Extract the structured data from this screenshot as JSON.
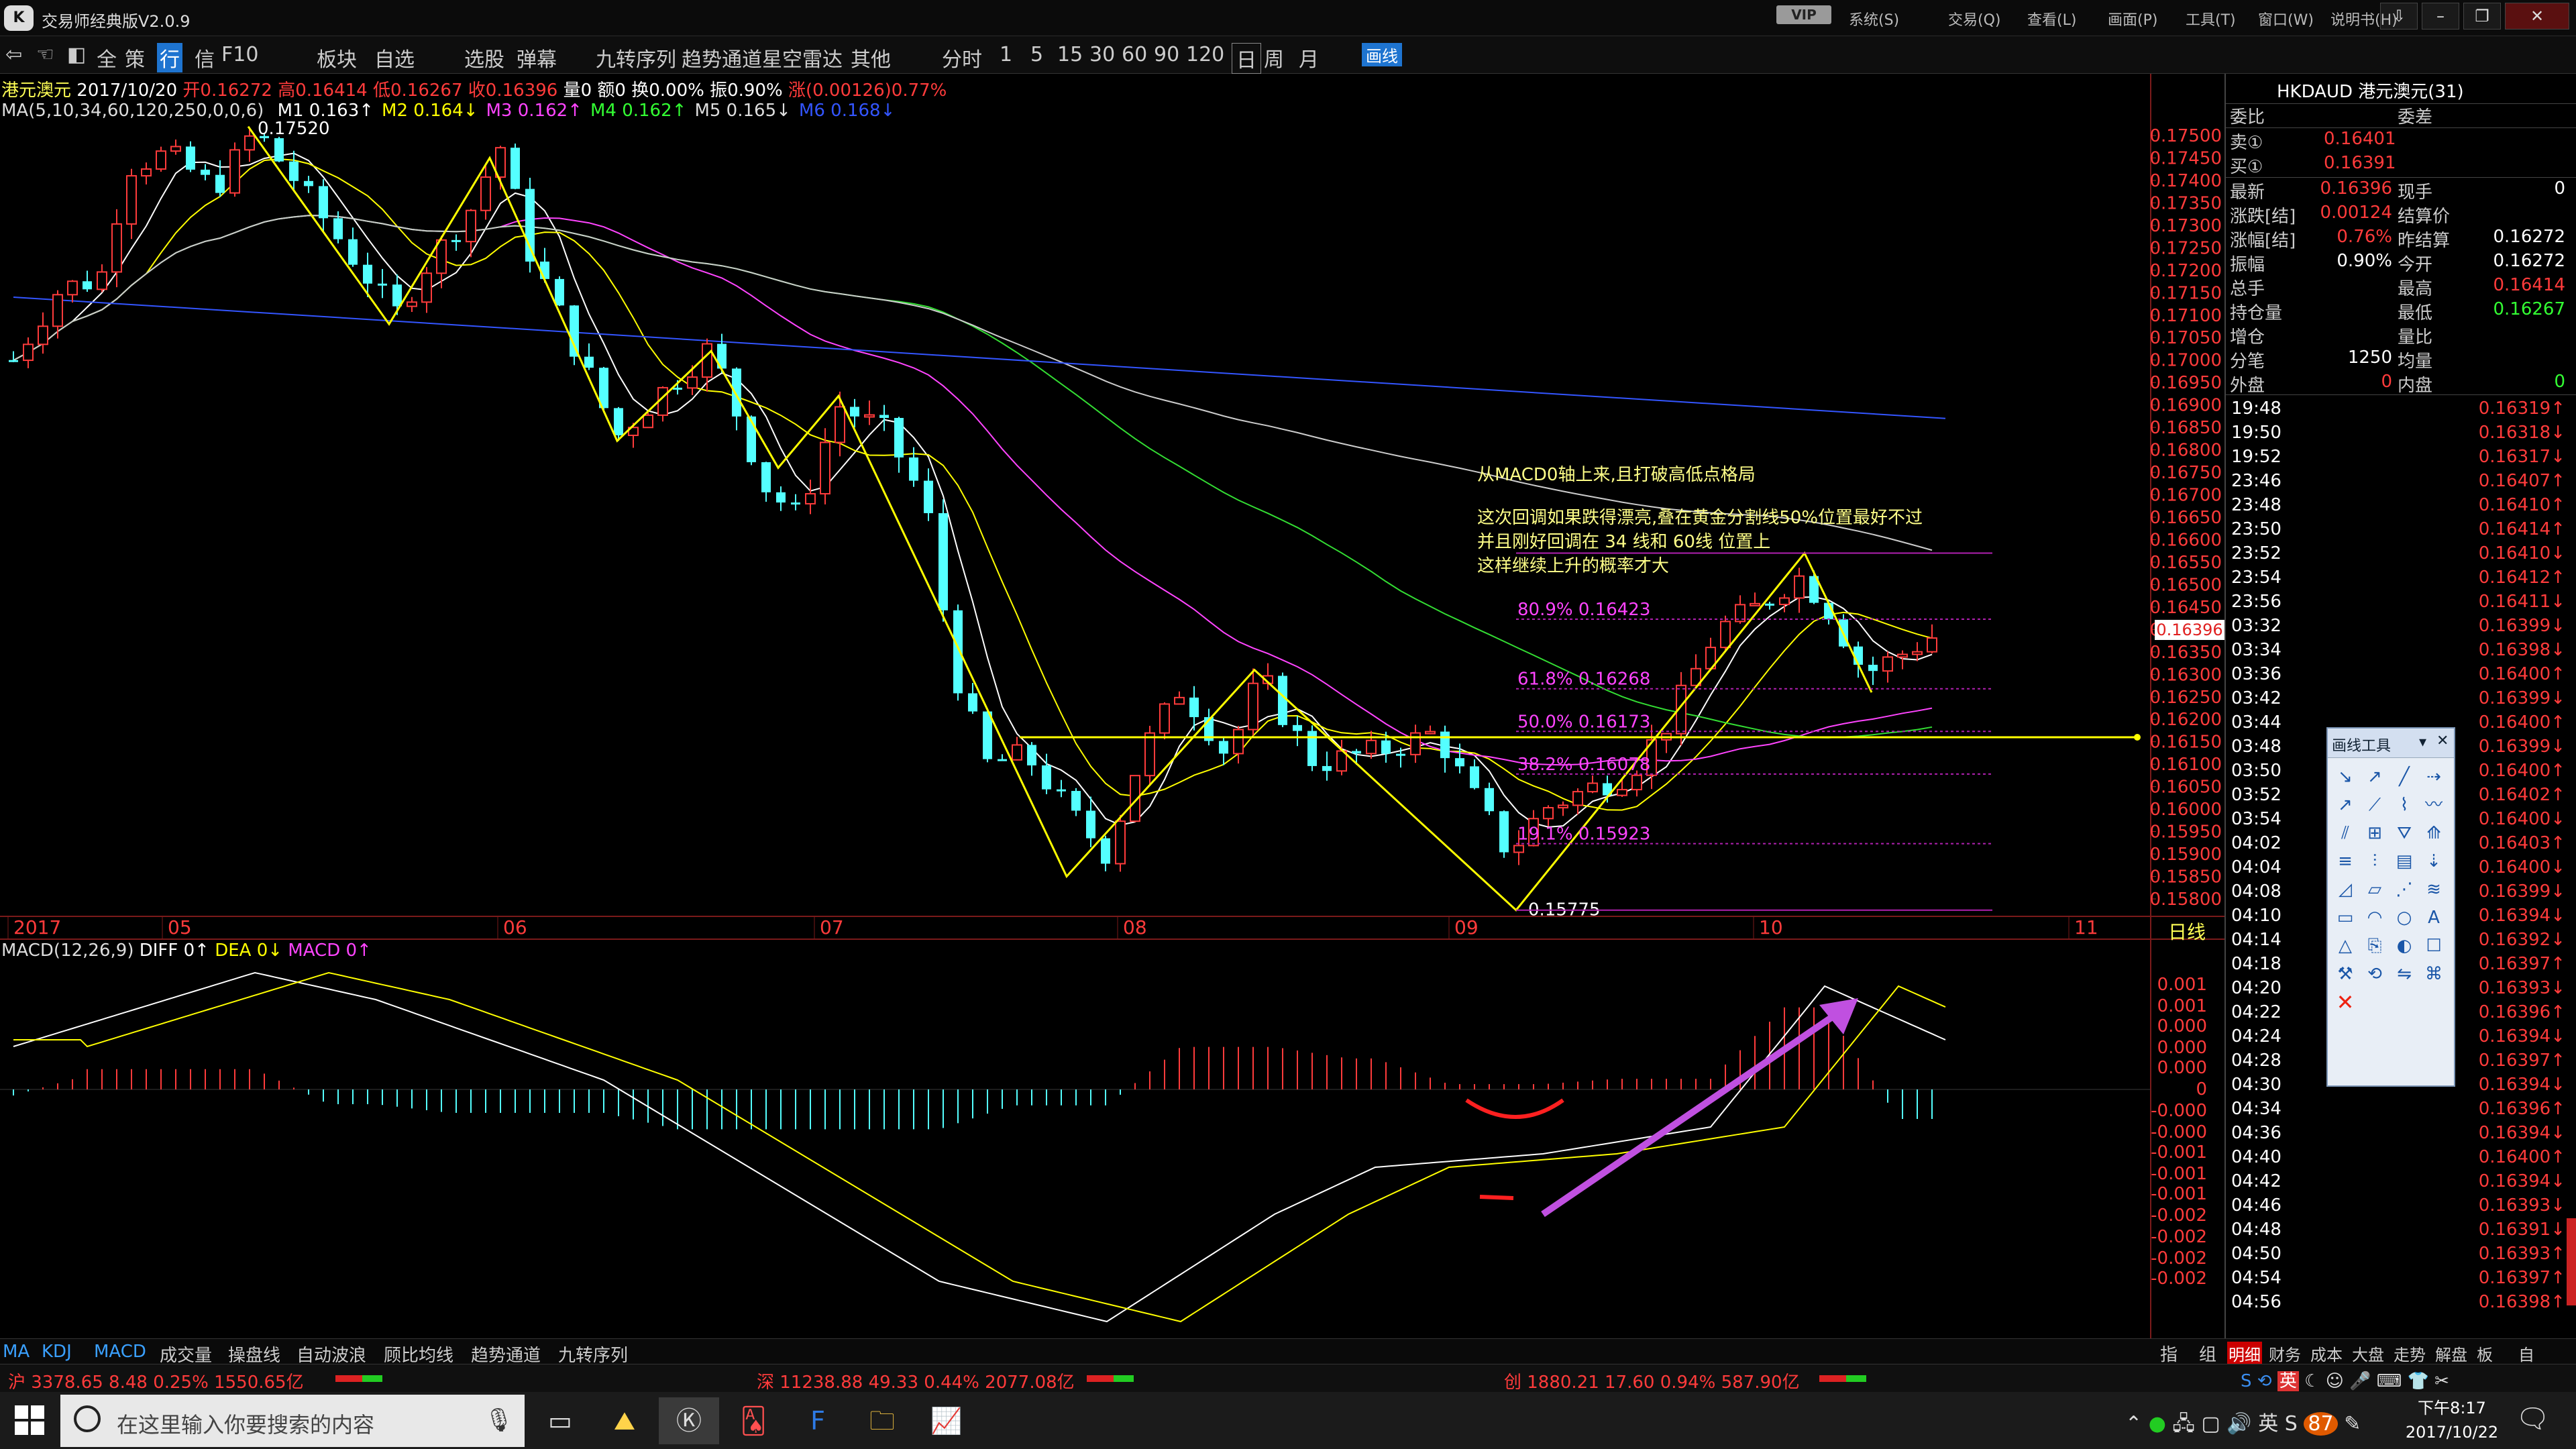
{
  "window": {
    "title": "交易师经典版V2.0.9",
    "vip": "VIP",
    "menus": [
      "系统(S)",
      "交易(Q)",
      "查看(L)",
      "画面(P)",
      "工具(T)",
      "窗口(W)",
      "说明书(H)"
    ],
    "controls": [
      "⇩",
      "–",
      "❐",
      "✕"
    ]
  },
  "toolbar": {
    "items": [
      "全",
      "策",
      "行",
      "信",
      "F10",
      "板块",
      "自选",
      "选股",
      "弹幕",
      "九转序列",
      "趋势通道",
      "星空雷达",
      "其他",
      "分时",
      "1",
      "5",
      "15",
      "30",
      "60",
      "90",
      "120",
      "日",
      "周",
      "月",
      "画线"
    ],
    "active": "行",
    "selected_period": "日"
  },
  "quote_line": {
    "name": "港元澳元",
    "date": "2017/10/20",
    "open": "开0.16272",
    "high": "高0.16414",
    "low": "低0.16267",
    "close": "收0.16396",
    "volume": "量0",
    "amount": "额0",
    "turnover": "换0.00%",
    "amplitude": "振0.90%",
    "change": "涨(0.00126)0.77%"
  },
  "ma_line": {
    "params": "MA(5,10,34,60,120,250,0,0,6)",
    "items": [
      {
        "label": "M1 0.163↑",
        "color": "#ffffff"
      },
      {
        "label": "M2 0.164↓",
        "color": "#ffff00"
      },
      {
        "label": "M3 0.162↑",
        "color": "#ff44ff"
      },
      {
        "label": "M4 0.162↑",
        "color": "#33ff33"
      },
      {
        "label": "M5 0.165↓",
        "color": "#dddddd"
      },
      {
        "label": "M6 0.168↓",
        "color": "#3355ff"
      }
    ]
  },
  "main_chart": {
    "price_axis": [
      "0.17500",
      "0.17450",
      "0.17400",
      "0.17350",
      "0.17300",
      "0.17250",
      "0.17200",
      "0.17150",
      "0.17100",
      "0.17050",
      "0.17000",
      "0.16950",
      "0.16900",
      "0.16850",
      "0.16800",
      "0.16750",
      "0.16700",
      "0.16650",
      "0.16600",
      "0.16550",
      "0.16500",
      "0.16450",
      "0.16400",
      "0.16350",
      "0.16300",
      "0.16250",
      "0.16200",
      "0.16150",
      "0.16100",
      "0.16050",
      "0.16000",
      "0.15950",
      "0.15900",
      "0.15850",
      "0.15800"
    ],
    "current_price_tag": "0.16396",
    "high_label": "0.17520",
    "low_label": "0.15775",
    "months": [
      "2017",
      "05",
      "06",
      "07",
      "08",
      "09",
      "10",
      "11"
    ],
    "period_label": "日线",
    "fib_levels": [
      {
        "label": "80.9% 0.16423",
        "value": 0.16423
      },
      {
        "label": "61.8% 0.16268",
        "value": 0.16268
      },
      {
        "label": "50.0% 0.16173",
        "value": 0.16173
      },
      {
        "label": "38.2% 0.16078",
        "value": 0.16078
      },
      {
        "label": "19.1% 0.15923",
        "value": 0.15923
      }
    ],
    "annotations": [
      "从MACD0轴上来,且打破高低点格局",
      "这次回调如果跌得漂亮,叠在黄金分割线50%位置最好不过",
      "并且刚好回调在 34 线和 60线 位置上",
      "这样继续上升的概率才大"
    ]
  },
  "macd": {
    "header": "MACD(12,26,9)",
    "diff": "DIFF 0↑",
    "dea": "DEA 0↓",
    "macd": "MACD 0↑",
    "axis": [
      "0.001",
      "0.001",
      "0.000",
      "0.000",
      "0.000",
      "0",
      "-0.000",
      "-0.000",
      "-0.001",
      "-0.001",
      "-0.001",
      "-0.002",
      "-0.002",
      "-0.002",
      "-0.002"
    ]
  },
  "indicator_tabs": [
    "MA",
    "KDJ",
    "MACD",
    "成交量",
    "操盘线",
    "自动波浪",
    "顾比均线",
    "趋势通道",
    "九转序列"
  ],
  "right_tabs": [
    "指",
    "组"
  ],
  "right_bottom_tabs": [
    "明细",
    "财务",
    "成本",
    "大盘",
    "走势",
    "解盘",
    "板",
    "自"
  ],
  "quote_panel": {
    "header": "HKDAUD 港元澳元(31)",
    "cols": [
      "委比",
      "委差"
    ],
    "sell": {
      "label": "卖①",
      "value": "0.16401"
    },
    "buy": {
      "label": "买①",
      "value": "0.16391"
    },
    "rows": [
      {
        "l1": "最新",
        "v1": "0.16396",
        "l2": "现手",
        "v2": "0",
        "c1": "#ff3b3b",
        "c2": "#ffffff"
      },
      {
        "l1": "涨跌[结]",
        "v1": "0.00124",
        "l2": "结算价",
        "v2": "",
        "c1": "#ff3b3b",
        "c2": "#ffffff"
      },
      {
        "l1": "涨幅[结]",
        "v1": "0.76%",
        "l2": "昨结算",
        "v2": "0.16272",
        "c1": "#ff3b3b",
        "c2": "#ffffff"
      },
      {
        "l1": "振幅",
        "v1": "0.90%",
        "l2": "今开",
        "v2": "0.16272",
        "c1": "#ffffff",
        "c2": "#ffffff"
      },
      {
        "l1": "总手",
        "v1": "",
        "l2": "最高",
        "v2": "0.16414",
        "c1": "#ffffff",
        "c2": "#ff3b3b"
      },
      {
        "l1": "持仓量",
        "v1": "",
        "l2": "最低",
        "v2": "0.16267",
        "c1": "#ffffff",
        "c2": "#33ff33"
      },
      {
        "l1": "增仓",
        "v1": "",
        "l2": "量比",
        "v2": "",
        "c1": "#ffffff",
        "c2": "#ffffff"
      },
      {
        "l1": "分笔",
        "v1": "1250",
        "l2": "均量",
        "v2": "",
        "c1": "#ffffff",
        "c2": "#ffffff"
      },
      {
        "l1": "外盘",
        "v1": "0",
        "l2": "内盘",
        "v2": "0",
        "c1": "#ff3b3b",
        "c2": "#33ff33"
      }
    ]
  },
  "ticks": [
    {
      "time": "19:48",
      "price": "0.16319↑",
      "c": "#ff3b3b"
    },
    {
      "time": "19:50",
      "price": "0.16318↓",
      "c": "#ff3b3b"
    },
    {
      "time": "19:52",
      "price": "0.16317↓",
      "c": "#ff3b3b"
    },
    {
      "time": "23:46",
      "price": "0.16407↑",
      "c": "#ff3b3b"
    },
    {
      "time": "23:48",
      "price": "0.16410↑",
      "c": "#ff3b3b"
    },
    {
      "time": "23:50",
      "price": "0.16414↑",
      "c": "#ff3b3b"
    },
    {
      "time": "23:52",
      "price": "0.16410↓",
      "c": "#ff3b3b"
    },
    {
      "time": "23:54",
      "price": "0.16412↑",
      "c": "#ff3b3b"
    },
    {
      "time": "23:56",
      "price": "0.16411↓",
      "c": "#ff3b3b"
    },
    {
      "time": "03:32",
      "price": "0.16399↓",
      "c": "#ff3b3b"
    },
    {
      "time": "03:34",
      "price": "0.16398↓",
      "c": "#ff3b3b"
    },
    {
      "time": "03:36",
      "price": "0.16400↑",
      "c": "#ff3b3b"
    },
    {
      "time": "03:42",
      "price": "0.16399↓",
      "c": "#ff3b3b"
    },
    {
      "time": "03:44",
      "price": "0.16400↑",
      "c": "#ff3b3b"
    },
    {
      "time": "03:48",
      "price": "0.16399↓",
      "c": "#ff3b3b"
    },
    {
      "time": "03:50",
      "price": "0.16400↑",
      "c": "#ff3b3b"
    },
    {
      "time": "03:52",
      "price": "0.16402↑",
      "c": "#ff3b3b"
    },
    {
      "time": "03:54",
      "price": "0.16400↓",
      "c": "#ff3b3b"
    },
    {
      "time": "04:02",
      "price": "0.16403↑",
      "c": "#ff3b3b"
    },
    {
      "time": "04:04",
      "price": "0.16400↓",
      "c": "#ff3b3b"
    },
    {
      "time": "04:08",
      "price": "0.16399↓",
      "c": "#ff3b3b"
    },
    {
      "time": "04:10",
      "price": "0.16394↓",
      "c": "#ff3b3b"
    },
    {
      "time": "04:14",
      "price": "0.16392↓",
      "c": "#ff3b3b"
    },
    {
      "time": "04:18",
      "price": "0.16397↑",
      "c": "#ff3b3b"
    },
    {
      "time": "04:20",
      "price": "0.16393↓",
      "c": "#ff3b3b"
    },
    {
      "time": "04:22",
      "price": "0.16396↑",
      "c": "#ff3b3b"
    },
    {
      "time": "04:24",
      "price": "0.16394↓",
      "c": "#ff3b3b"
    },
    {
      "time": "04:28",
      "price": "0.16397↑",
      "c": "#ff3b3b"
    },
    {
      "time": "04:30",
      "price": "0.16394↓",
      "c": "#ff3b3b"
    },
    {
      "time": "04:34",
      "price": "0.16396↑",
      "c": "#ff3b3b"
    },
    {
      "time": "04:36",
      "price": "0.16394↓",
      "c": "#ff3b3b"
    },
    {
      "time": "04:40",
      "price": "0.16400↑",
      "c": "#ff3b3b"
    },
    {
      "time": "04:42",
      "price": "0.16394↓",
      "c": "#ff3b3b"
    },
    {
      "time": "04:46",
      "price": "0.16393↓",
      "c": "#ff3b3b"
    },
    {
      "time": "04:48",
      "price": "0.16391↓",
      "c": "#ff3b3b"
    },
    {
      "time": "04:50",
      "price": "0.16393↑",
      "c": "#ff3b3b"
    },
    {
      "time": "04:54",
      "price": "0.16397↑",
      "c": "#ff3b3b"
    },
    {
      "time": "04:56",
      "price": "0.16398↑",
      "c": "#ff3b3b"
    }
  ],
  "status_bar": {
    "sh": "沪 3378.65 8.48 0.25% 1550.65亿",
    "sz": "深 11238.88 49.33 0.44% 2077.08亿",
    "cy": "创 1880.21 17.60 0.94% 587.90亿"
  },
  "taskbar": {
    "search_placeholder": "在这里输入你要搜索的内容",
    "time": "下午8:17",
    "date": "2017/10/22",
    "ime": "英",
    "badge": "87"
  },
  "draw_tools": {
    "title": "画线工具"
  }
}
